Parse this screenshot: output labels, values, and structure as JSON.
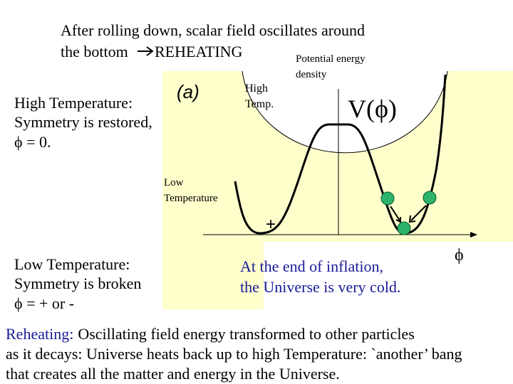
{
  "header": {
    "line1": "After rolling down, scalar field oscillates around",
    "line2_start": "the bottom",
    "line2_end": "REHEATING"
  },
  "plot": {
    "label_a": "(a)",
    "potential_label": "V(ϕ)",
    "potential_caption": [
      "Potential energy",
      "density"
    ],
    "high_temp": [
      "High",
      "Temp."
    ],
    "low_temp": [
      "Low",
      "Temperature"
    ],
    "plus": "+",
    "x_axis_label": "ϕ"
  },
  "high_state": [
    "High Temperature:",
    "Symmetry is restored,",
    "ϕ = 0."
  ],
  "low_state": [
    "Low Temperature:",
    "Symmetry is broken",
    "ϕ = + or -"
  ],
  "inflation_note": [
    "At the end of inflation,",
    "the Universe is very cold."
  ],
  "footer": {
    "lead": "Reheating:",
    "line1": "Oscillating field energy transformed to other particles",
    "line2": "as it decays: Universe heats back up to high Temperature: `another’ bang",
    "line3": "that creates all the matter and energy in the Universe."
  }
}
